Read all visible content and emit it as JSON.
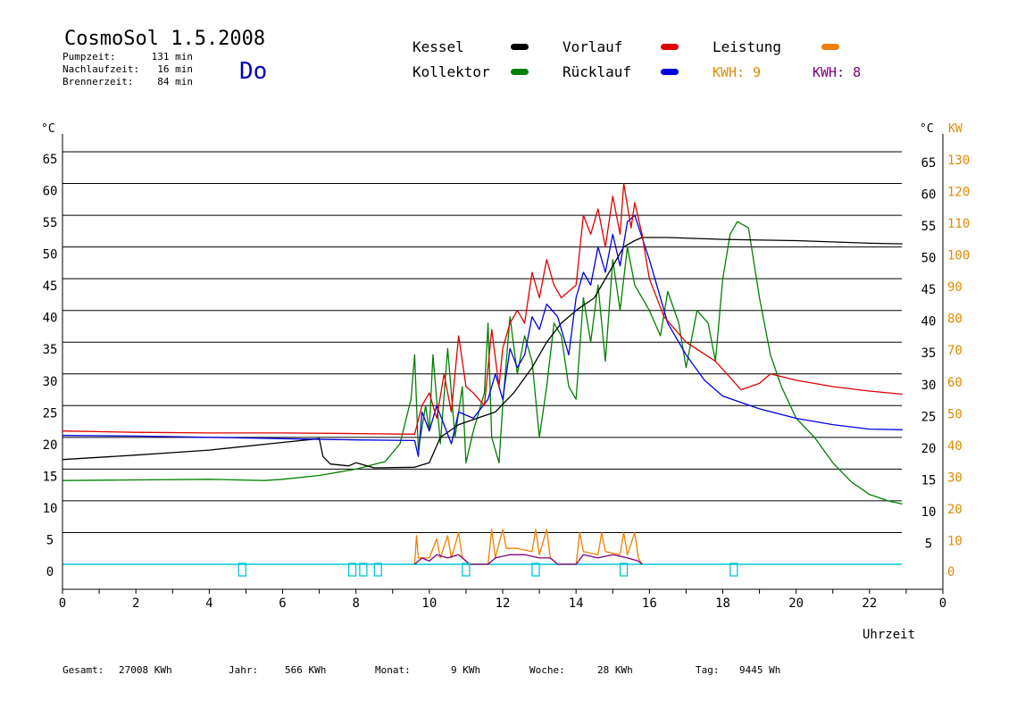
{
  "header": {
    "title": "CosmoSol 1.5.2008",
    "day": "Do",
    "stats": [
      {
        "label": "Pumpzeit:",
        "value": "131 min"
      },
      {
        "label": "Nachlaufzeit:",
        "value": "16 min"
      },
      {
        "label": "Brennerzeit:",
        "value": "84 min"
      }
    ]
  },
  "legend": {
    "items": [
      {
        "label": "Kessel",
        "color": "#000000"
      },
      {
        "label": "Vorlauf",
        "color": "#e00000"
      },
      {
        "label": "Leistung",
        "color": "#f08000"
      },
      {
        "label": "Kollektor",
        "color": "#008000"
      },
      {
        "label": "Rücklauf",
        "color": "#0000e0"
      }
    ],
    "kwh": [
      {
        "label": "KWH: 9",
        "color": "#e08a00"
      },
      {
        "label": "KWH: 8",
        "color": "#800080"
      }
    ]
  },
  "footer": [
    {
      "label": "Gesamt:",
      "value": "27008 KWh"
    },
    {
      "label": "Jahr:",
      "value": "566 KWh"
    },
    {
      "label": "Monat:",
      "value": "9 KWh"
    },
    {
      "label": "Woche:",
      "value": "28 KWh"
    },
    {
      "label": "Tag:",
      "value": "9445 Wh"
    }
  ],
  "chart_data": {
    "type": "line",
    "xlabel": "Uhrzeit",
    "ylabel_left": "°C",
    "ylabel_right_temp": "°C",
    "ylabel_right_power": "KW",
    "xlim": [
      0,
      24
    ],
    "ylim": [
      0,
      65
    ],
    "x_ticks": [
      "0",
      "2",
      "4",
      "6",
      "8",
      "10",
      "12",
      "14",
      "16",
      "18",
      "20",
      "22",
      "0"
    ],
    "y_ticks_left": [
      "0",
      "5",
      "10",
      "15",
      "20",
      "25",
      "30",
      "35",
      "40",
      "45",
      "50",
      "55",
      "60",
      "65"
    ],
    "y_ticks_right_temp": [
      "5",
      "10",
      "15",
      "20",
      "25",
      "30",
      "35",
      "40",
      "45",
      "50",
      "55",
      "60",
      "65"
    ],
    "y_ticks_right_power": [
      "0",
      "10",
      "20",
      "30",
      "40",
      "50",
      "60",
      "70",
      "80",
      "90",
      "100",
      "110",
      "120",
      "130"
    ],
    "grid": true,
    "series": [
      {
        "name": "Kessel",
        "color": "#000000",
        "points": [
          [
            0,
            16.5
          ],
          [
            2,
            17.2
          ],
          [
            4,
            18
          ],
          [
            6,
            19.2
          ],
          [
            7,
            19.8
          ],
          [
            7.1,
            17
          ],
          [
            7.3,
            15.8
          ],
          [
            7.8,
            15.5
          ],
          [
            8,
            16
          ],
          [
            8.5,
            15.2
          ],
          [
            9.6,
            15.3
          ],
          [
            10,
            16
          ],
          [
            10.3,
            20
          ],
          [
            10.8,
            22
          ],
          [
            11.3,
            23
          ],
          [
            11.8,
            24
          ],
          [
            12.3,
            27
          ],
          [
            12.8,
            31
          ],
          [
            13.2,
            35
          ],
          [
            13.6,
            38
          ],
          [
            14,
            40
          ],
          [
            14.5,
            42
          ],
          [
            15,
            47
          ],
          [
            15.3,
            50
          ],
          [
            15.6,
            51
          ],
          [
            15.8,
            51.5
          ],
          [
            16.5,
            51.5
          ],
          [
            18,
            51.2
          ],
          [
            20,
            51
          ],
          [
            22,
            50.6
          ],
          [
            22.9,
            50.5
          ]
        ]
      },
      {
        "name": "Vorlauf",
        "color": "#e00000",
        "points": [
          [
            0,
            21
          ],
          [
            2,
            20.8
          ],
          [
            4,
            20.7
          ],
          [
            6,
            20.7
          ],
          [
            8,
            20.6
          ],
          [
            9.6,
            20.5
          ],
          [
            9.8,
            25
          ],
          [
            10,
            27
          ],
          [
            10.2,
            23
          ],
          [
            10.4,
            30
          ],
          [
            10.6,
            24
          ],
          [
            10.8,
            36
          ],
          [
            11,
            28
          ],
          [
            11.2,
            27
          ],
          [
            11.5,
            25
          ],
          [
            11.7,
            37
          ],
          [
            11.9,
            28
          ],
          [
            12,
            34
          ],
          [
            12.2,
            38
          ],
          [
            12.4,
            40
          ],
          [
            12.6,
            38
          ],
          [
            12.8,
            46
          ],
          [
            13,
            42
          ],
          [
            13.2,
            48
          ],
          [
            13.4,
            44
          ],
          [
            13.6,
            42
          ],
          [
            14,
            44
          ],
          [
            14.2,
            55
          ],
          [
            14.4,
            52
          ],
          [
            14.6,
            56
          ],
          [
            14.8,
            50
          ],
          [
            15,
            58
          ],
          [
            15.2,
            52
          ],
          [
            15.3,
            60
          ],
          [
            15.5,
            53
          ],
          [
            15.6,
            57
          ],
          [
            15.8,
            52
          ],
          [
            16,
            45
          ],
          [
            16.4,
            39
          ],
          [
            17,
            35
          ],
          [
            17.8,
            32
          ],
          [
            18.5,
            27.5
          ],
          [
            19,
            28.5
          ],
          [
            19.3,
            30
          ],
          [
            20,
            29
          ],
          [
            21,
            28
          ],
          [
            22,
            27.3
          ],
          [
            22.9,
            26.8
          ]
        ]
      },
      {
        "name": "Rücklauf",
        "color": "#0000e0",
        "points": [
          [
            0,
            20.3
          ],
          [
            2,
            20.2
          ],
          [
            4,
            20
          ],
          [
            6,
            19.8
          ],
          [
            8,
            19.6
          ],
          [
            9.6,
            19.5
          ],
          [
            9.7,
            17
          ],
          [
            9.8,
            24
          ],
          [
            10,
            21
          ],
          [
            10.2,
            25
          ],
          [
            10.4,
            22
          ],
          [
            10.6,
            19
          ],
          [
            10.8,
            24
          ],
          [
            11.2,
            23
          ],
          [
            11.6,
            26
          ],
          [
            11.8,
            30
          ],
          [
            12,
            26
          ],
          [
            12.2,
            34
          ],
          [
            12.4,
            31
          ],
          [
            12.6,
            33
          ],
          [
            12.8,
            39
          ],
          [
            13,
            37
          ],
          [
            13.2,
            41
          ],
          [
            13.5,
            39
          ],
          [
            13.8,
            33
          ],
          [
            14,
            42
          ],
          [
            14.2,
            46
          ],
          [
            14.4,
            44
          ],
          [
            14.6,
            50
          ],
          [
            14.8,
            46
          ],
          [
            15,
            52
          ],
          [
            15.2,
            47
          ],
          [
            15.4,
            54
          ],
          [
            15.6,
            55
          ],
          [
            16,
            48
          ],
          [
            16.5,
            38
          ],
          [
            17,
            33
          ],
          [
            17.5,
            29
          ],
          [
            18,
            26.5
          ],
          [
            19,
            24.5
          ],
          [
            20,
            23
          ],
          [
            21,
            22
          ],
          [
            22,
            21.3
          ],
          [
            22.9,
            21.2
          ]
        ]
      },
      {
        "name": "Kollektor",
        "color": "#008000",
        "points": [
          [
            0,
            13.2
          ],
          [
            2,
            13.3
          ],
          [
            4,
            13.4
          ],
          [
            5.5,
            13.2
          ],
          [
            6,
            13.4
          ],
          [
            7,
            14
          ],
          [
            8,
            15
          ],
          [
            8.8,
            16.2
          ],
          [
            9.2,
            19
          ],
          [
            9.5,
            26
          ],
          [
            9.6,
            33
          ],
          [
            9.7,
            18
          ],
          [
            9.9,
            25
          ],
          [
            10,
            21
          ],
          [
            10.1,
            33
          ],
          [
            10.3,
            19
          ],
          [
            10.5,
            34
          ],
          [
            10.7,
            20
          ],
          [
            10.9,
            28
          ],
          [
            11,
            16
          ],
          [
            11.2,
            21
          ],
          [
            11.5,
            27
          ],
          [
            11.6,
            38
          ],
          [
            11.7,
            20
          ],
          [
            11.9,
            16
          ],
          [
            12,
            25
          ],
          [
            12.2,
            39
          ],
          [
            12.4,
            30
          ],
          [
            12.6,
            36
          ],
          [
            12.8,
            32
          ],
          [
            13,
            20
          ],
          [
            13.2,
            28
          ],
          [
            13.4,
            38
          ],
          [
            13.6,
            36
          ],
          [
            13.8,
            28
          ],
          [
            14,
            26
          ],
          [
            14.2,
            42
          ],
          [
            14.4,
            35
          ],
          [
            14.6,
            44
          ],
          [
            14.8,
            32
          ],
          [
            15,
            48
          ],
          [
            15.2,
            40
          ],
          [
            15.4,
            50
          ],
          [
            15.6,
            44
          ],
          [
            16,
            40
          ],
          [
            16.3,
            36
          ],
          [
            16.5,
            43
          ],
          [
            16.8,
            38
          ],
          [
            17,
            31
          ],
          [
            17.3,
            40
          ],
          [
            17.6,
            38
          ],
          [
            17.8,
            32
          ],
          [
            18,
            45
          ],
          [
            18.2,
            52
          ],
          [
            18.4,
            54
          ],
          [
            18.7,
            53
          ],
          [
            19,
            42
          ],
          [
            19.3,
            33
          ],
          [
            19.6,
            28
          ],
          [
            20,
            23
          ],
          [
            20.5,
            20
          ],
          [
            21,
            16
          ],
          [
            21.5,
            13
          ],
          [
            22,
            11
          ],
          [
            22.5,
            10
          ],
          [
            22.9,
            9.5
          ]
        ]
      },
      {
        "name": "Leistung",
        "color": "#f08000",
        "axis": "power",
        "points": [
          [
            9.6,
            0
          ],
          [
            9.65,
            9
          ],
          [
            9.7,
            2
          ],
          [
            10,
            2
          ],
          [
            10.2,
            8
          ],
          [
            10.3,
            2
          ],
          [
            10.5,
            9
          ],
          [
            10.6,
            2
          ],
          [
            10.8,
            10
          ],
          [
            10.9,
            2
          ],
          [
            11.1,
            0
          ],
          [
            11.6,
            0
          ],
          [
            11.7,
            11
          ],
          [
            11.8,
            2
          ],
          [
            12,
            11
          ],
          [
            12.1,
            5
          ],
          [
            12.4,
            5
          ],
          [
            12.8,
            4
          ],
          [
            12.9,
            11
          ],
          [
            13,
            3
          ],
          [
            13.2,
            11
          ],
          [
            13.3,
            2
          ],
          [
            13.5,
            0
          ],
          [
            14,
            0
          ],
          [
            14.1,
            10
          ],
          [
            14.2,
            4
          ],
          [
            14.6,
            3
          ],
          [
            14.7,
            10
          ],
          [
            14.8,
            4
          ],
          [
            15.2,
            3
          ],
          [
            15.3,
            10
          ],
          [
            15.4,
            3
          ],
          [
            15.6,
            10
          ],
          [
            15.7,
            2
          ],
          [
            15.8,
            0
          ]
        ]
      },
      {
        "name": "Leistung2",
        "color": "#800080",
        "axis": "power",
        "points": [
          [
            9.6,
            0
          ],
          [
            9.8,
            2
          ],
          [
            10,
            1
          ],
          [
            10.2,
            3
          ],
          [
            10.5,
            2
          ],
          [
            10.8,
            3
          ],
          [
            11,
            1
          ],
          [
            11.1,
            0
          ],
          [
            11.6,
            0
          ],
          [
            11.8,
            2
          ],
          [
            12.2,
            3
          ],
          [
            12.6,
            3
          ],
          [
            13,
            2
          ],
          [
            13.3,
            2
          ],
          [
            13.5,
            0
          ],
          [
            14,
            0
          ],
          [
            14.2,
            3
          ],
          [
            14.6,
            2
          ],
          [
            15,
            3
          ],
          [
            15.4,
            2
          ],
          [
            15.7,
            1
          ],
          [
            15.8,
            0
          ]
        ]
      }
    ],
    "pump_markers": [
      4.9,
      7.9,
      8.2,
      8.6,
      11.0,
      12.9,
      15.3,
      18.3
    ]
  }
}
